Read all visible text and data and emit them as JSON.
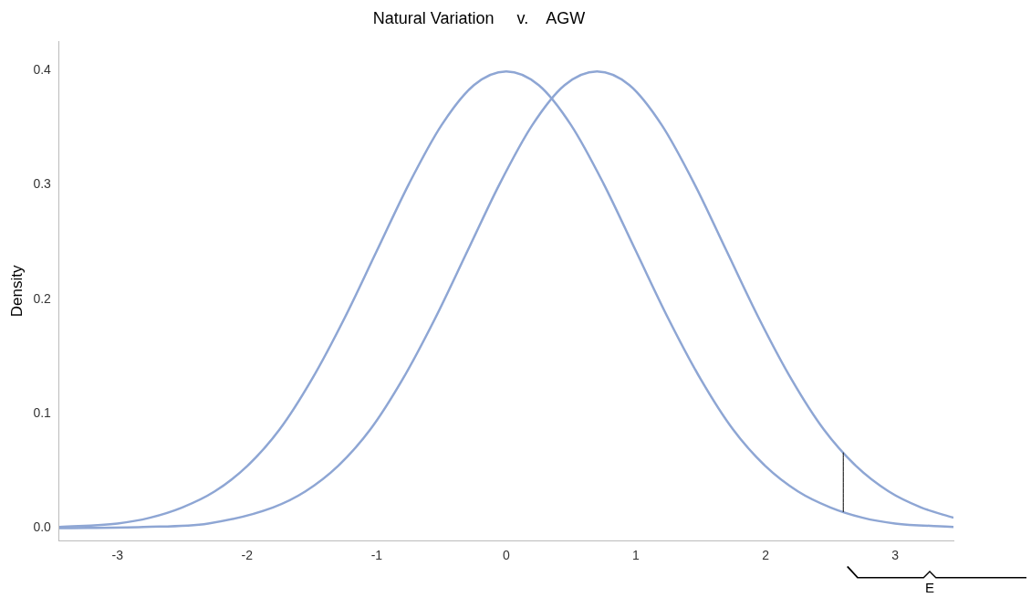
{
  "chart_data": {
    "type": "line",
    "title": "Natural Variation     v.    AGW",
    "ylabel": "Density",
    "xlim": [
      -3.45,
      3.45
    ],
    "ylim": [
      -0.011,
      0.425
    ],
    "xticks": [
      -3,
      -2,
      -1,
      0,
      1,
      2,
      3
    ],
    "yticks": [
      {
        "value": 0,
        "label": "0.0"
      },
      {
        "value": 0.1,
        "label": "0.1"
      },
      {
        "value": 0.2,
        "label": "0.2"
      },
      {
        "value": 0.3,
        "label": "0.3"
      },
      {
        "value": 0.4,
        "label": "0.4"
      }
    ],
    "grid": false,
    "legend": false,
    "marker": "none",
    "line_style": "solid",
    "annotations": [
      "E"
    ],
    "series": [
      {
        "color": "#000000",
        "x": [
          2.6,
          2.6
        ],
        "values": [
          0.066,
          0.014
        ]
      },
      {
        "color": "#8ea6d4",
        "x": [
          -3.45,
          -3,
          -2.75,
          -2.5,
          -2.25,
          -2,
          -1.75,
          -1.5,
          -1.25,
          -1,
          -0.75,
          -0.5,
          -0.25,
          0,
          0.25,
          0.5,
          0.75,
          1,
          1.25,
          1.5,
          1.75,
          2,
          2.25,
          2.5,
          2.75,
          3,
          3.45
        ],
        "values": [
          0.001,
          0.004,
          0.009,
          0.018,
          0.032,
          0.054,
          0.086,
          0.13,
          0.183,
          0.242,
          0.301,
          0.352,
          0.387,
          0.399,
          0.387,
          0.352,
          0.301,
          0.242,
          0.183,
          0.13,
          0.086,
          0.054,
          0.032,
          0.018,
          0.009,
          0.004,
          0.001
        ]
      },
      {
        "color": "#8ea6d4",
        "x": [
          -3.45,
          -2.8,
          -2.3,
          -1.8,
          -1.55,
          -1.3,
          -1.05,
          -0.8,
          -0.55,
          -0.3,
          -0.05,
          0.2,
          0.45,
          0.7,
          0.95,
          1.2,
          1.45,
          1.7,
          1.95,
          2.2,
          2.45,
          2.7,
          2.95,
          3.2,
          3.45
        ],
        "values": [
          0,
          0.001,
          0.004,
          0.018,
          0.032,
          0.054,
          0.086,
          0.13,
          0.183,
          0.242,
          0.301,
          0.352,
          0.387,
          0.399,
          0.387,
          0.352,
          0.301,
          0.242,
          0.183,
          0.13,
          0.086,
          0.054,
          0.032,
          0.018,
          0.009
        ]
      }
    ]
  }
}
